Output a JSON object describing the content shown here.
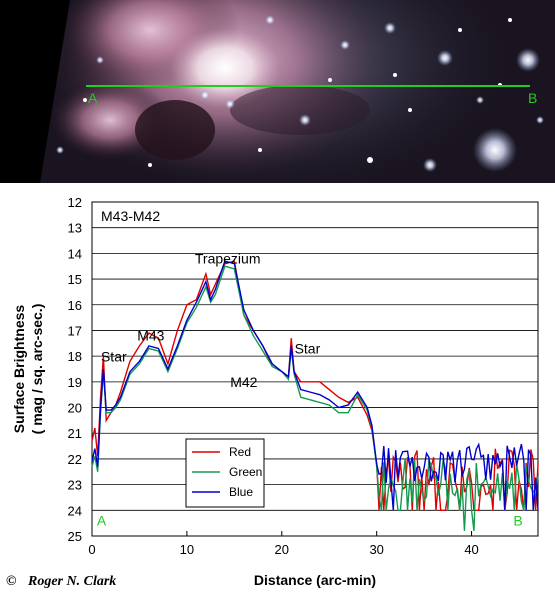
{
  "photo": {
    "marker_start": "A",
    "marker_end": "B",
    "profile_line_color": "#22cc22"
  },
  "credit": {
    "symbol": "©",
    "author": "Roger N. Clark"
  },
  "chart_data": {
    "type": "line",
    "title": "M43-M42",
    "xlabel": "Distance (arc-min)",
    "ylabel_line1": "Surface Brightness",
    "ylabel_line2": "( mag / sq. arc-sec.)",
    "xlim": [
      0,
      47
    ],
    "ylim": [
      25,
      12
    ],
    "y_inverted": true,
    "xticks": [
      0,
      10,
      20,
      30,
      40
    ],
    "yticks": [
      12,
      13,
      14,
      15,
      16,
      17,
      18,
      19,
      20,
      21,
      22,
      23,
      24,
      25
    ],
    "grid": "horizontal",
    "legend": "lower-left",
    "annotations": [
      {
        "text": "Trapezium",
        "x": 14.3,
        "y": 14.4
      },
      {
        "text": "M43",
        "x": 6.2,
        "y": 17.4
      },
      {
        "text": "Star",
        "x": 2.3,
        "y": 18.2
      },
      {
        "text": "Star",
        "x": 22.7,
        "y": 17.9
      },
      {
        "text": "M42",
        "x": 16.0,
        "y": 19.2
      },
      {
        "text": "A",
        "x": 1.0,
        "y": 24.6
      },
      {
        "text": "B",
        "x": 44.9,
        "y": 24.6
      }
    ],
    "series": [
      {
        "name": "Red",
        "color": "#e00000",
        "x": [
          0,
          0.3,
          0.6,
          0.9,
          1.2,
          1.5,
          2,
          2.5,
          3,
          4,
          5,
          6,
          7,
          8,
          9,
          10,
          11,
          12,
          12.5,
          13,
          14,
          15,
          16,
          17,
          18,
          19,
          20,
          20.7,
          21,
          21.3,
          22,
          23,
          24,
          25,
          26,
          27,
          28,
          29,
          29.5,
          30
        ],
        "y": [
          21.3,
          20.8,
          21.9,
          19.6,
          18.0,
          20.5,
          20.2,
          19.9,
          19.4,
          18.2,
          17.6,
          17.1,
          17.3,
          18.3,
          17.0,
          16.0,
          15.8,
          14.8,
          15.6,
          15.2,
          14.4,
          14.3,
          16.4,
          17.0,
          17.6,
          18.4,
          18.6,
          18.8,
          17.3,
          18.6,
          19.0,
          19.0,
          19.0,
          19.3,
          19.6,
          19.8,
          19.6,
          20.3,
          20.9,
          22.2
        ]
      },
      {
        "name": "Green",
        "color": "#139a4f",
        "x": [
          0,
          0.3,
          0.6,
          0.9,
          1.2,
          1.5,
          2,
          2.5,
          3,
          4,
          5,
          6,
          7,
          8,
          9,
          10,
          11,
          12,
          12.5,
          13,
          14,
          15,
          16,
          17,
          18,
          19,
          20,
          20.7,
          21,
          21.3,
          22,
          23,
          24,
          25,
          26,
          27,
          28,
          29,
          29.5,
          30
        ],
        "y": [
          22.3,
          21.9,
          22.5,
          20.2,
          18.6,
          20.2,
          20.2,
          20.0,
          19.7,
          18.7,
          18.3,
          17.7,
          17.8,
          18.6,
          17.7,
          16.7,
          16.1,
          15.3,
          15.9,
          15.6,
          14.5,
          14.6,
          16.4,
          17.2,
          17.8,
          18.4,
          18.6,
          18.9,
          17.7,
          18.7,
          19.6,
          19.7,
          19.8,
          19.9,
          20.2,
          20.2,
          19.5,
          20.1,
          20.8,
          22.3
        ]
      },
      {
        "name": "Blue",
        "color": "#0000cc",
        "x": [
          0,
          0.3,
          0.6,
          0.9,
          1.2,
          1.5,
          2,
          2.5,
          3,
          4,
          5,
          6,
          7,
          8,
          9,
          10,
          11,
          12,
          12.5,
          13,
          14,
          15,
          16,
          17,
          18,
          19,
          20,
          20.7,
          21,
          21.3,
          22,
          23,
          24,
          25,
          26,
          27,
          28,
          29,
          29.5,
          30
        ],
        "y": [
          22.1,
          21.6,
          22.3,
          20.0,
          18.5,
          20.1,
          20.1,
          19.9,
          19.6,
          18.6,
          18.2,
          17.6,
          17.7,
          18.5,
          17.6,
          16.6,
          15.9,
          15.1,
          15.8,
          15.4,
          14.3,
          14.4,
          16.2,
          17.0,
          17.6,
          18.3,
          18.6,
          18.8,
          17.6,
          18.6,
          19.3,
          19.4,
          19.5,
          19.7,
          20.0,
          19.9,
          19.4,
          20.0,
          20.7,
          22.2
        ]
      }
    ]
  }
}
